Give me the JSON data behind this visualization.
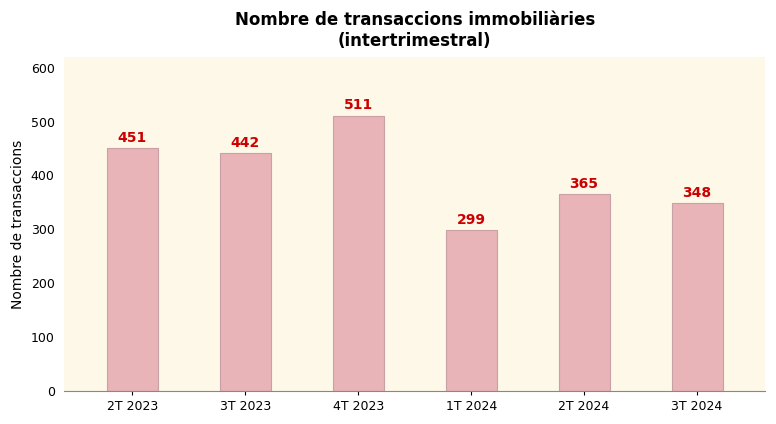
{
  "categories": [
    "2T 2023",
    "3T 2023",
    "4T 2023",
    "1T 2024",
    "2T 2024",
    "3T 2024"
  ],
  "values": [
    451,
    442,
    511,
    299,
    365,
    348
  ],
  "bar_color": "#e8b4b8",
  "bar_edgecolor": "#c9a0a5",
  "label_color": "#cc0000",
  "title_line1": "Nombre de transaccions immobiliàries",
  "title_line2": "(intertrimestral)",
  "ylabel": "Nombre de transaccions",
  "ylim": [
    0,
    620
  ],
  "yticks": [
    0,
    100,
    200,
    300,
    400,
    500,
    600
  ],
  "plot_bg_color": "#fdf8e8",
  "fig_bg_color": "#ffffff",
  "title_fontsize": 12,
  "label_fontsize": 10,
  "axis_label_fontsize": 10,
  "tick_fontsize": 9,
  "bar_width": 0.45
}
